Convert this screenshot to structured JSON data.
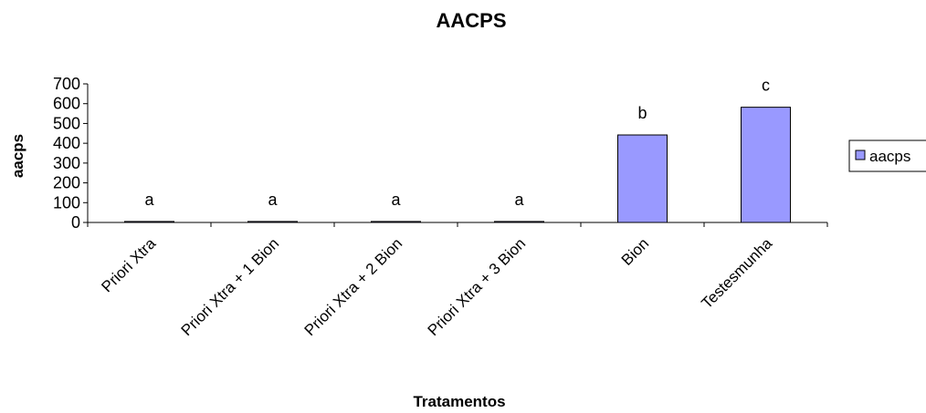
{
  "chart_data": {
    "type": "bar",
    "title": "AACPS",
    "xlabel": "Tratamentos",
    "ylabel": "aacps",
    "categories": [
      "Priori Xtra",
      "Priori Xtra + 1 Bion",
      "Priori Xtra + 2 Bion",
      "Priori Xtra + 3 Bion",
      "Bion",
      "Testesmunha"
    ],
    "series": [
      {
        "name": "aacps",
        "values": [
          5,
          5,
          5,
          5,
          442,
          582
        ],
        "labels": [
          "a",
          "a",
          "a",
          "a",
          "b",
          "c"
        ],
        "color": "#9999ff"
      }
    ],
    "ylim": [
      0,
      700
    ],
    "yticks": [
      0,
      100,
      200,
      300,
      400,
      500,
      600,
      700
    ],
    "grid": false,
    "legend": "right"
  }
}
